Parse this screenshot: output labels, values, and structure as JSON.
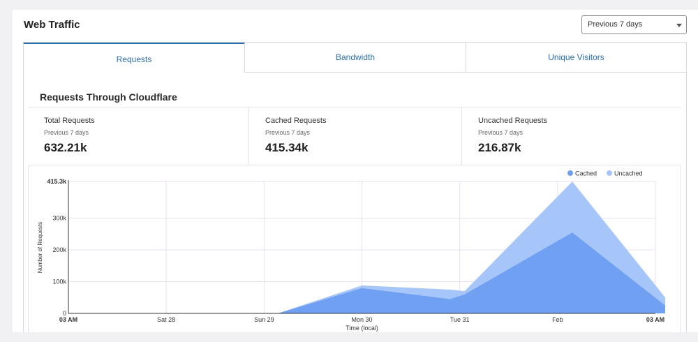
{
  "header": {
    "title": "Web Traffic"
  },
  "range_select": {
    "value": "Previous 7 days"
  },
  "tabs": [
    {
      "label": "Requests",
      "active": true
    },
    {
      "label": "Bandwidth",
      "active": false
    },
    {
      "label": "Unique Visitors",
      "active": false
    }
  ],
  "section": {
    "title": "Requests Through Cloudflare"
  },
  "stats": [
    {
      "label": "Total Requests",
      "sub": "Previous 7 days",
      "value": "632.21k"
    },
    {
      "label": "Cached Requests",
      "sub": "Previous 7 days",
      "value": "415.34k"
    },
    {
      "label": "Uncached Requests",
      "sub": "Previous 7 days",
      "value": "216.87k"
    }
  ],
  "colors": {
    "cached": "#6fa0f2",
    "uncached": "#a6c5f8",
    "accent": "#2c6fad"
  },
  "chart_data": {
    "type": "area",
    "stacked": true,
    "ylabel": "Number of Requests",
    "xlabel": "Time (local)",
    "ylim": [
      0,
      415300
    ],
    "y_ticks": [
      {
        "value": 0,
        "label": "0"
      },
      {
        "value": 100000,
        "label": "100k"
      },
      {
        "value": 200000,
        "label": "200k"
      },
      {
        "value": 300000,
        "label": "300k"
      },
      {
        "value": 415300,
        "label": "415.3k"
      }
    ],
    "x_labels": [
      "03 AM",
      "Sat 28",
      "Sun 29",
      "Mon 30",
      "Tue 31",
      "Feb",
      "03 AM"
    ],
    "x": [
      0,
      1,
      2,
      2.14,
      3,
      3.9,
      4.05,
      5.15,
      6.1
    ],
    "legend": [
      "Cached",
      "Uncached"
    ],
    "legend_position": "top-right",
    "series": [
      {
        "name": "Cached",
        "values": [
          0,
          0,
          0,
          0,
          80000,
          45000,
          60000,
          255000,
          25000
        ]
      },
      {
        "name": "Uncached",
        "values": [
          0,
          0,
          0,
          0,
          8000,
          30000,
          10000,
          160000,
          25000
        ]
      }
    ]
  }
}
